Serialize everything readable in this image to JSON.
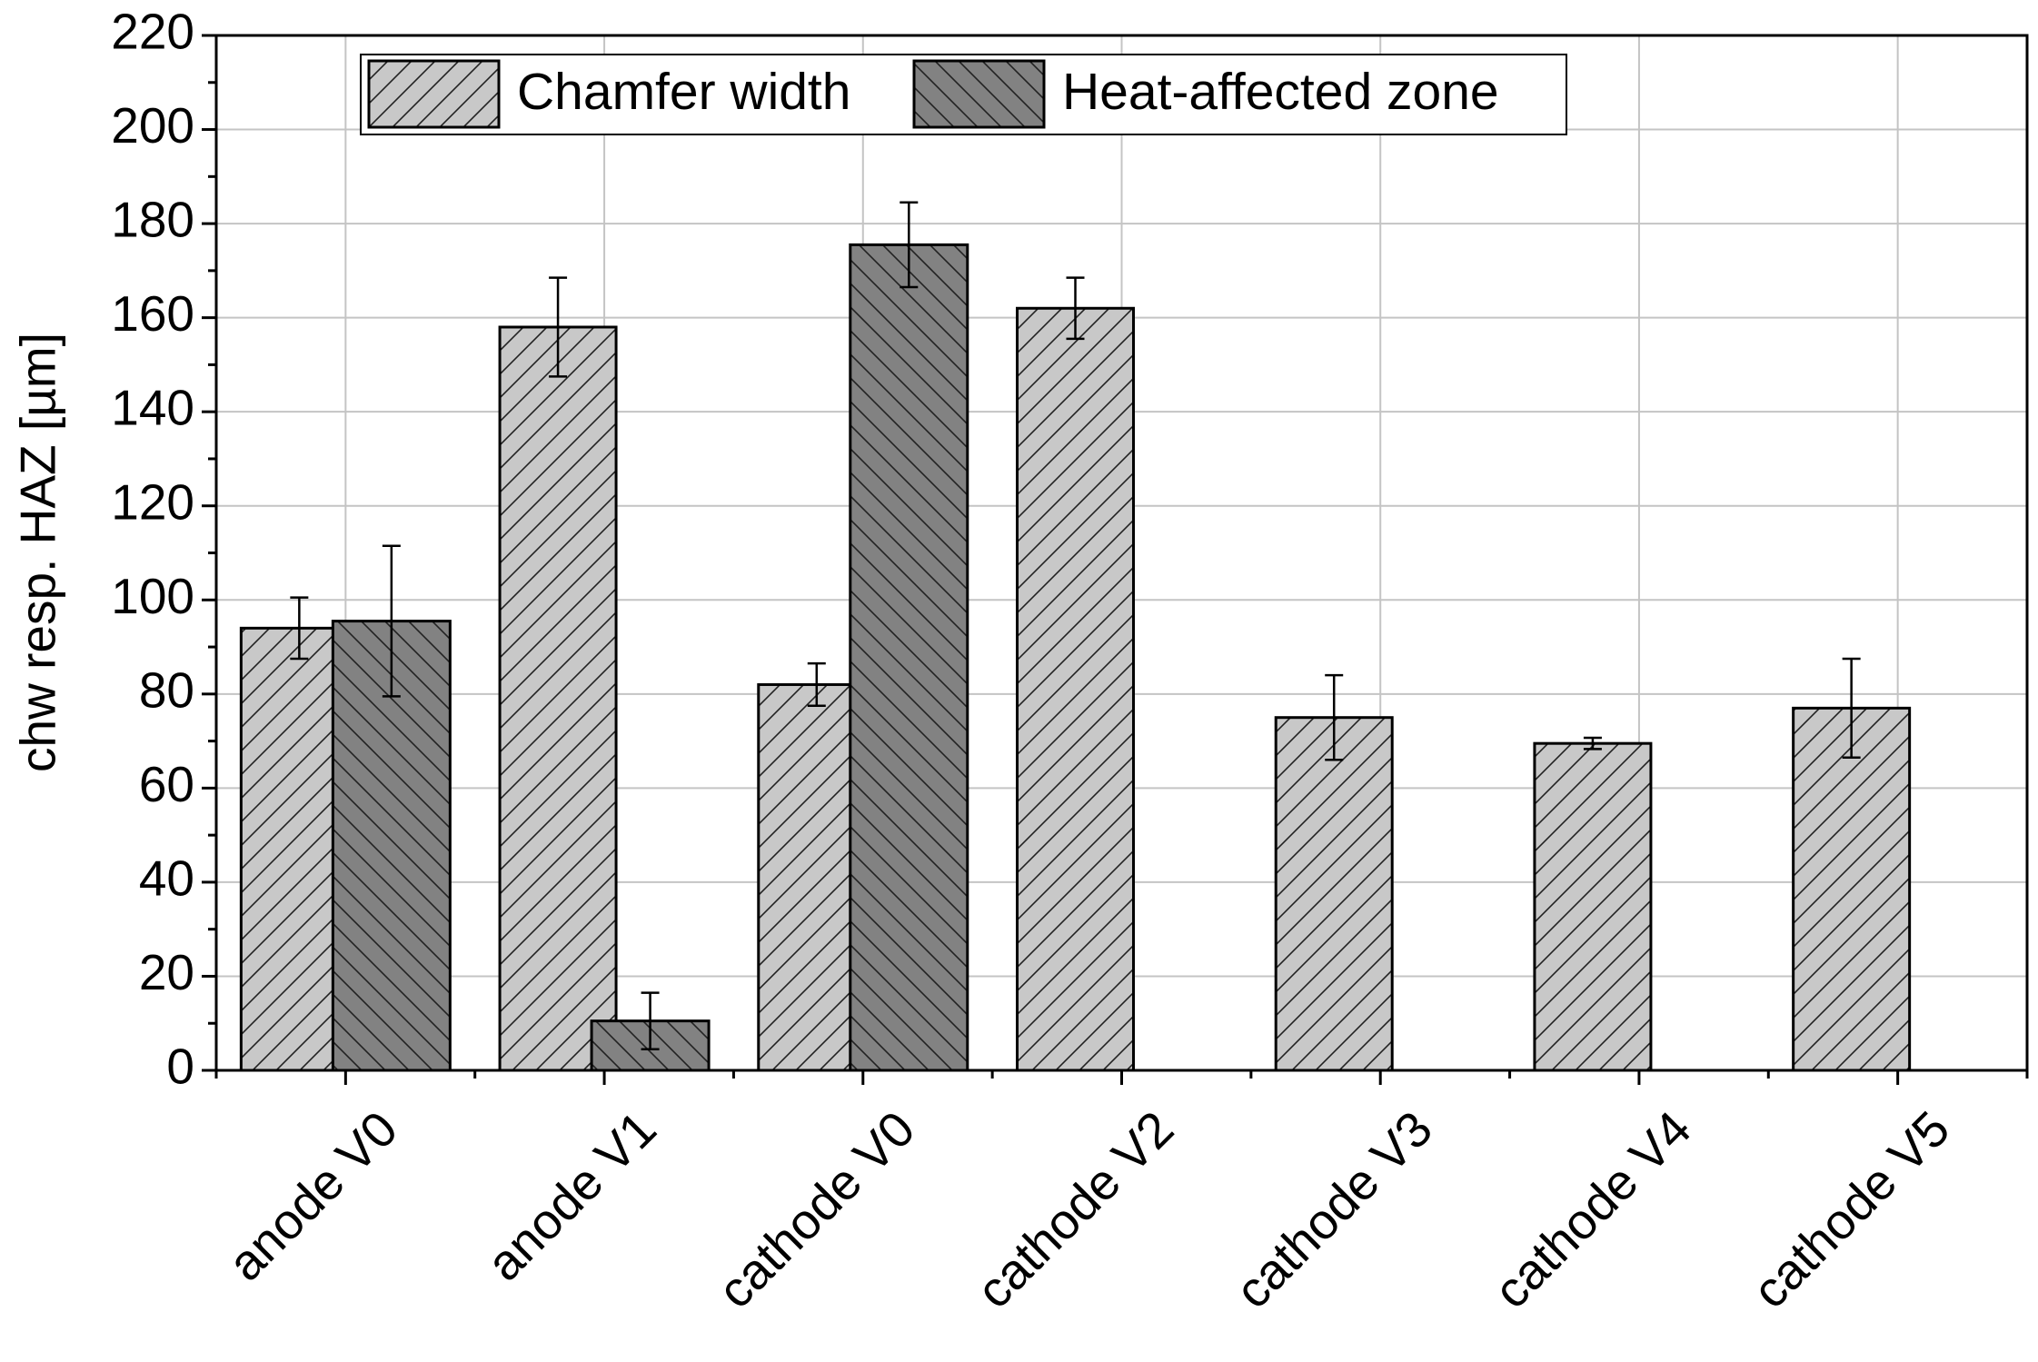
{
  "chart_data": {
    "type": "bar",
    "y_label": "chw resp. HAZ [µm]",
    "categories": [
      "anode V0",
      "anode V1",
      "cathode V0",
      "cathode V2",
      "cathode V3",
      "cathode V4",
      "cathode V5"
    ],
    "series": [
      {
        "name": "Chamfer width",
        "color": "#c8c8c8",
        "hatch": "/",
        "values": [
          94,
          158,
          82,
          162,
          75,
          69.5,
          77
        ],
        "errors": [
          6.5,
          10.5,
          4.5,
          6.5,
          9,
          1.2,
          10.5
        ]
      },
      {
        "name": "Heat-affected zone",
        "color": "#828282",
        "hatch": "\\",
        "values": [
          95.5,
          10.5,
          175.5,
          null,
          null,
          null,
          null
        ],
        "errors": [
          16,
          6,
          9,
          null,
          null,
          null,
          null
        ]
      }
    ],
    "ylim": [
      0,
      220
    ],
    "yticks": [
      0,
      20,
      40,
      60,
      80,
      100,
      120,
      140,
      160,
      180,
      200,
      220
    ],
    "grid": true,
    "legend": "top"
  }
}
